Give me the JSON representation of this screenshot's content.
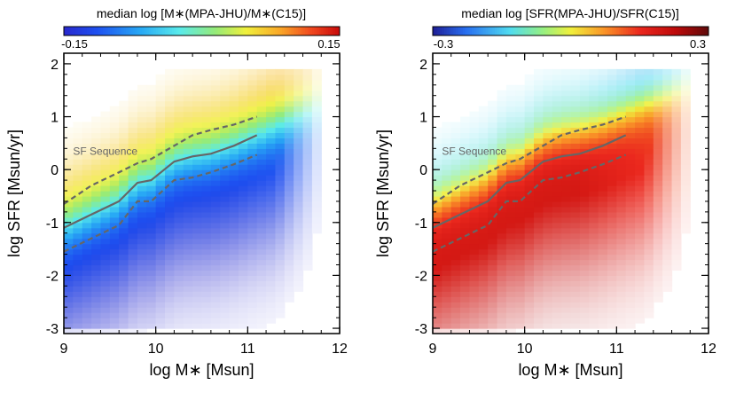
{
  "chart_data": [
    {
      "type": "heatmap",
      "colorbar_label": "median log [M∗(MPA-JHU)/M∗(C15)]",
      "colorbar_range": [
        -0.15,
        0.15
      ],
      "colorbar_ticks": [
        "-0.15",
        "0.15"
      ],
      "colormap": "rainbow (blue-cyan-green-yellow-orange-red)",
      "xlabel": "log M∗ [Msun]",
      "ylabel": "log SFR [Msun/yr]",
      "xlim": [
        9,
        12
      ],
      "ylim": [
        -3.1,
        2.2
      ],
      "xticks": [
        "9",
        "10",
        "11",
        "12"
      ],
      "yticks": [
        "-3",
        "-2",
        "-1",
        "0",
        "1",
        "2"
      ],
      "annotation": "SF Sequence",
      "sf_sequence": {
        "x": [
          9.0,
          9.3,
          9.6,
          9.8,
          9.95,
          10.2,
          10.4,
          10.6,
          10.85,
          11.1
        ],
        "median": [
          -1.1,
          -0.85,
          -0.6,
          -0.25,
          -0.2,
          0.15,
          0.25,
          0.3,
          0.45,
          0.65
        ],
        "upper": [
          -0.65,
          -0.3,
          -0.05,
          0.12,
          0.2,
          0.45,
          0.65,
          0.75,
          0.85,
          1.0
        ],
        "lower": [
          -1.55,
          -1.3,
          -1.05,
          -0.6,
          -0.6,
          -0.2,
          -0.15,
          -0.05,
          0.1,
          0.28
        ]
      }
    },
    {
      "type": "heatmap",
      "colorbar_label": "median log [SFR(MPA-JHU)/SFR(C15)]",
      "colorbar_range": [
        -0.3,
        0.3
      ],
      "colorbar_ticks": [
        "-0.3",
        "0.3"
      ],
      "colormap": "blue-cyan-green-yellow-red-dark red",
      "xlabel": "log M∗ [Msun]",
      "ylabel": "log SFR [Msun/yr]",
      "xlim": [
        9,
        12
      ],
      "ylim": [
        -3.1,
        2.2
      ],
      "xticks": [
        "9",
        "10",
        "11",
        "12"
      ],
      "yticks": [
        "-3",
        "-2",
        "-1",
        "0",
        "1",
        "2"
      ],
      "annotation": "SF Sequence",
      "sf_sequence": {
        "x": [
          9.0,
          9.3,
          9.6,
          9.8,
          9.95,
          10.2,
          10.4,
          10.6,
          10.85,
          11.1
        ],
        "median": [
          -1.1,
          -0.85,
          -0.6,
          -0.25,
          -0.2,
          0.15,
          0.25,
          0.3,
          0.45,
          0.65
        ],
        "upper": [
          -0.65,
          -0.3,
          -0.05,
          0.12,
          0.2,
          0.45,
          0.65,
          0.75,
          0.85,
          1.0
        ],
        "lower": [
          -1.55,
          -1.3,
          -1.05,
          -0.6,
          -0.6,
          -0.2,
          -0.15,
          -0.05,
          0.1,
          0.28
        ]
      }
    }
  ],
  "colors": {
    "sequence_line": "#666666",
    "axis": "#000000"
  }
}
